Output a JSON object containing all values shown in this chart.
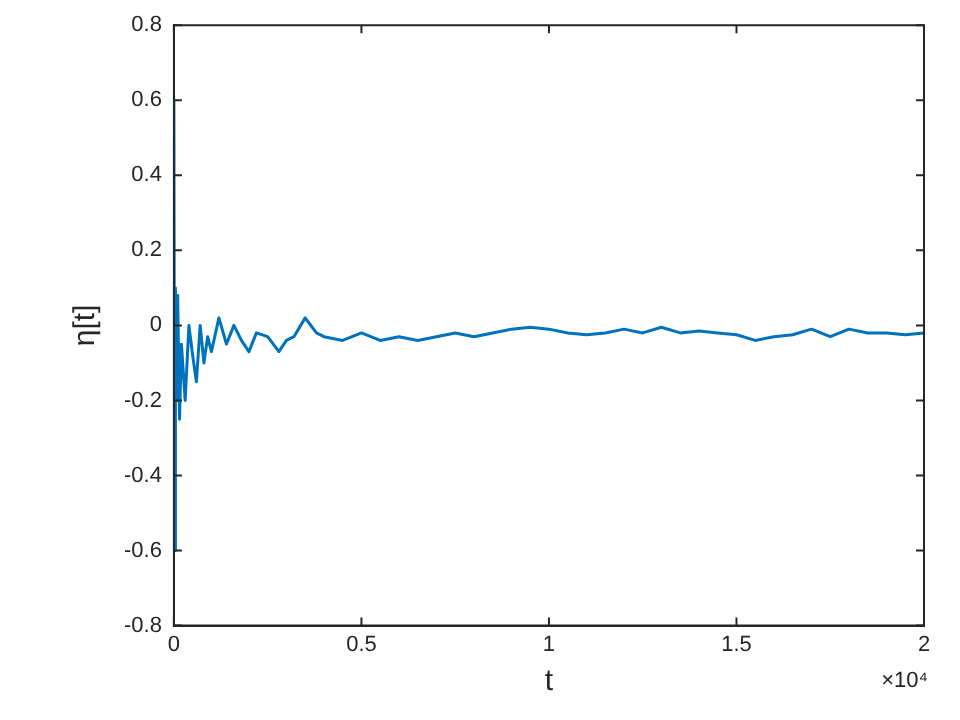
{
  "chart_data": {
    "type": "line",
    "xlabel": "t",
    "ylabel": "η[t]",
    "annotations": [
      "×10⁴"
    ],
    "xlim": [
      0,
      2
    ],
    "ylim": [
      -0.8,
      0.8
    ],
    "xticks": [
      0,
      0.5,
      1,
      1.5,
      2
    ],
    "yticks": [
      -0.8,
      -0.6,
      -0.4,
      -0.2,
      0,
      0.2,
      0.4,
      0.6,
      0.8
    ],
    "grid": false,
    "legend": false,
    "marker": "none",
    "line_style": "solid",
    "series": [
      {
        "color": "#0072bd",
        "x": [
          0,
          0.002,
          0.004,
          0.006,
          0.01,
          0.015,
          0.02,
          0.03,
          0.04,
          0.05,
          0.06,
          0.07,
          0.08,
          0.09,
          0.1,
          0.12,
          0.14,
          0.16,
          0.18,
          0.2,
          0.22,
          0.25,
          0.28,
          0.3,
          0.32,
          0.35,
          0.38,
          0.4,
          0.45,
          0.5,
          0.55,
          0.6,
          0.65,
          0.7,
          0.75,
          0.8,
          0.85,
          0.9,
          0.95,
          1,
          1.05,
          1.1,
          1.15,
          1.2,
          1.25,
          1.3,
          1.35,
          1.4,
          1.45,
          1.5,
          1.55,
          1.6,
          1.65,
          1.7,
          1.75,
          1.8,
          1.85,
          1.9,
          1.95,
          2
        ],
        "values": [
          0.6,
          -0.6,
          0.1,
          -0.2,
          0.08,
          -0.25,
          -0.05,
          -0.2,
          0.0,
          -0.08,
          -0.15,
          0.0,
          -0.1,
          -0.03,
          -0.07,
          0.02,
          -0.05,
          0.0,
          -0.04,
          -0.07,
          -0.02,
          -0.03,
          -0.07,
          -0.04,
          -0.03,
          0.02,
          -0.02,
          -0.03,
          -0.04,
          -0.02,
          -0.04,
          -0.03,
          -0.04,
          -0.03,
          -0.02,
          -0.03,
          -0.02,
          -0.01,
          -0.005,
          -0.01,
          -0.02,
          -0.025,
          -0.02,
          -0.01,
          -0.02,
          -0.005,
          -0.02,
          -0.015,
          -0.02,
          -0.025,
          -0.04,
          -0.03,
          -0.025,
          -0.01,
          -0.03,
          -0.01,
          -0.02,
          -0.02,
          -0.025,
          -0.02
        ]
      }
    ]
  }
}
